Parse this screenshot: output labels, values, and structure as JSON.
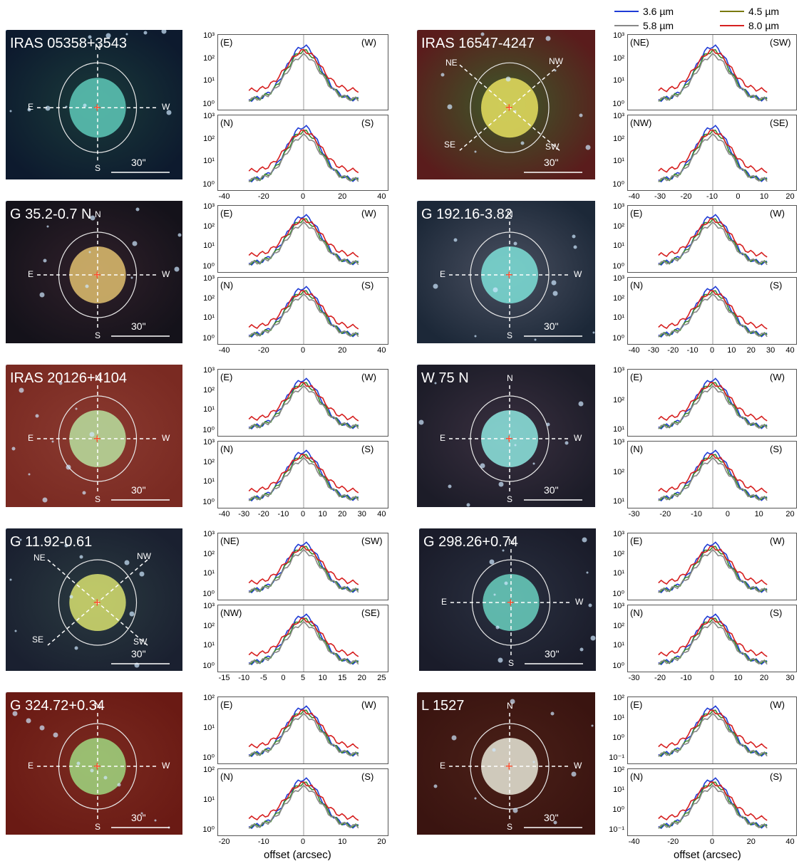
{
  "legend": [
    {
      "label": "3.6 µm",
      "color": "#1f3bd6"
    },
    {
      "label": "4.5 µm",
      "color": "#7a7a10"
    },
    {
      "label": "5.8 µm",
      "color": "#888888"
    },
    {
      "label": "8.0 µm",
      "color": "#d62020"
    }
  ],
  "xlabel": "offset (arcsec)",
  "sources": [
    {
      "name": "IRAS 05358+3543",
      "scale": "30\"",
      "dirs": [
        "E",
        "W",
        "N",
        "S"
      ],
      "top_pair": [
        "(E)",
        "(W)"
      ],
      "bot_pair": [
        "(N)",
        "(S)"
      ],
      "xticks": [
        "-40",
        "-20",
        "0",
        "20",
        "40"
      ]
    },
    {
      "name": "IRAS 16547-4247",
      "scale": "30\"",
      "dirs": [
        "NE",
        "NW",
        "SE",
        "SW"
      ],
      "top_pair": [
        "(NE)",
        "(SW)"
      ],
      "bot_pair": [
        "(NW)",
        "(SE)"
      ],
      "xticks": [
        "-40",
        "-30",
        "-20",
        "-10",
        "0",
        "10",
        "20"
      ]
    },
    {
      "name": "G 35.2-0.7 N",
      "scale": "30\"",
      "dirs": [
        "E",
        "W",
        "N",
        "S"
      ],
      "top_pair": [
        "(E)",
        "(W)"
      ],
      "bot_pair": [
        "(N)",
        "(S)"
      ],
      "xticks": [
        "-40",
        "-20",
        "0",
        "20",
        "40"
      ]
    },
    {
      "name": "G 192.16-3.82",
      "scale": "30\"",
      "dirs": [
        "E",
        "W",
        "N",
        "S"
      ],
      "top_pair": [
        "(E)",
        "(W)"
      ],
      "bot_pair": [
        "(N)",
        "(S)"
      ],
      "xticks": [
        "-40",
        "-30",
        "-20",
        "-10",
        "0",
        "10",
        "20",
        "30",
        "40"
      ]
    },
    {
      "name": "IRAS 20126+4104",
      "scale": "30\"",
      "dirs": [
        "E",
        "W",
        "N",
        "S"
      ],
      "top_pair": [
        "(E)",
        "(W)"
      ],
      "bot_pair": [
        "(N)",
        "(S)"
      ],
      "xticks": [
        "-40",
        "-30",
        "-20",
        "-10",
        "0",
        "10",
        "20",
        "30",
        "40"
      ]
    },
    {
      "name": "W 75 N",
      "scale": "30\"",
      "dirs": [
        "E",
        "W",
        "N",
        "S"
      ],
      "top_pair": [
        "(E)",
        "(W)"
      ],
      "bot_pair": [
        "(N)",
        "(S)"
      ],
      "xticks": [
        "-30",
        "-20",
        "-10",
        "0",
        "10",
        "20"
      ]
    },
    {
      "name": "G 11.92-0.61",
      "scale": "30\"",
      "dirs": [
        "NE",
        "NW",
        "SE",
        "SW"
      ],
      "top_pair": [
        "(NE)",
        "(SW)"
      ],
      "bot_pair": [
        "(NW)",
        "(SE)"
      ],
      "xticks": [
        "-15",
        "-10",
        "-5",
        "0",
        "5",
        "10",
        "15",
        "20",
        "25"
      ]
    },
    {
      "name": "G 298.26+0.74",
      "scale": "30\"",
      "dirs": [
        "E",
        "W",
        "N",
        "S"
      ],
      "top_pair": [
        "(E)",
        "(W)"
      ],
      "bot_pair": [
        "(N)",
        "(S)"
      ],
      "xticks": [
        "-30",
        "-20",
        "-10",
        "0",
        "10",
        "20",
        "30"
      ]
    },
    {
      "name": "G 324.72+0.34",
      "scale": "30\"",
      "dirs": [
        "E",
        "W",
        "N",
        "S"
      ],
      "top_pair": [
        "(E)",
        "(W)"
      ],
      "bot_pair": [
        "(N)",
        "(S)"
      ],
      "xticks": [
        "-20",
        "-10",
        "0",
        "10",
        "20"
      ]
    },
    {
      "name": "L 1527",
      "scale": "30\"",
      "dirs": [
        "E",
        "W",
        "N",
        "S"
      ],
      "top_pair": [
        "(E)",
        "(W)"
      ],
      "bot_pair": [
        "(N)",
        "(S)"
      ],
      "xticks": [
        "-40",
        "-20",
        "0",
        "20",
        "40"
      ]
    }
  ],
  "yticks_std": [
    "10³",
    "10²",
    "10¹",
    "10⁰"
  ],
  "yticks_324": [
    "10²",
    "10¹",
    "10⁰"
  ],
  "yticks_l1527": [
    "10²",
    "10¹",
    "10⁰",
    "10⁻¹"
  ],
  "yticks_w75": [
    "10³",
    "10²",
    "10¹"
  ]
}
